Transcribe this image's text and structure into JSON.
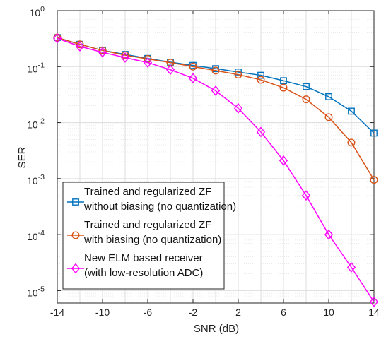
{
  "chart_data": {
    "type": "line",
    "title": "",
    "xlabel": "SNR (dB)",
    "ylabel": "SER",
    "x": [
      -14,
      -12,
      -10,
      -8,
      -6,
      -4,
      -2,
      0,
      2,
      4,
      6,
      8,
      10,
      12,
      14
    ],
    "xlim": [
      -14,
      14
    ],
    "xticks": [
      -14,
      -10,
      -6,
      -2,
      2,
      6,
      10,
      14
    ],
    "ylim": [
      6e-06,
      1
    ],
    "yscale": "log",
    "ytick_exponents": [
      0,
      -1,
      -2,
      -3,
      -4,
      -5
    ],
    "ytick_base": "10",
    "grid": true,
    "legend_position": "lower-left",
    "series": [
      {
        "name": "Trained and regularized ZF|without biasing (no quantization)",
        "name_lines": [
          "Trained and regularized ZF",
          "without biasing (no quantization)"
        ],
        "color": "#0072BD",
        "marker": "square",
        "values": [
          0.33,
          0.25,
          0.195,
          0.165,
          0.14,
          0.12,
          0.105,
          0.092,
          0.08,
          0.07,
          0.056,
          0.044,
          0.029,
          0.016,
          0.0065
        ]
      },
      {
        "name": "Trained and regularized ZF|with biasing (no quantization)",
        "name_lines": [
          "Trained and regularized ZF",
          "with biasing (no quantization)"
        ],
        "color": "#D95319",
        "marker": "circle",
        "values": [
          0.33,
          0.25,
          0.195,
          0.16,
          0.137,
          0.118,
          0.1,
          0.085,
          0.072,
          0.058,
          0.042,
          0.026,
          0.0125,
          0.0044,
          0.00095
        ]
      },
      {
        "name": "New ELM based receiver|(with low-resolution ADC)",
        "name_lines": [
          "New ELM based receiver",
          "(with low-resolution ADC)"
        ],
        "color": "#FF00FF",
        "marker": "diamond",
        "values": [
          0.32,
          0.23,
          0.18,
          0.145,
          0.118,
          0.088,
          0.062,
          0.037,
          0.018,
          0.0068,
          0.0021,
          0.0005,
          0.0001,
          2.6e-05,
          6.3e-06
        ]
      }
    ]
  }
}
